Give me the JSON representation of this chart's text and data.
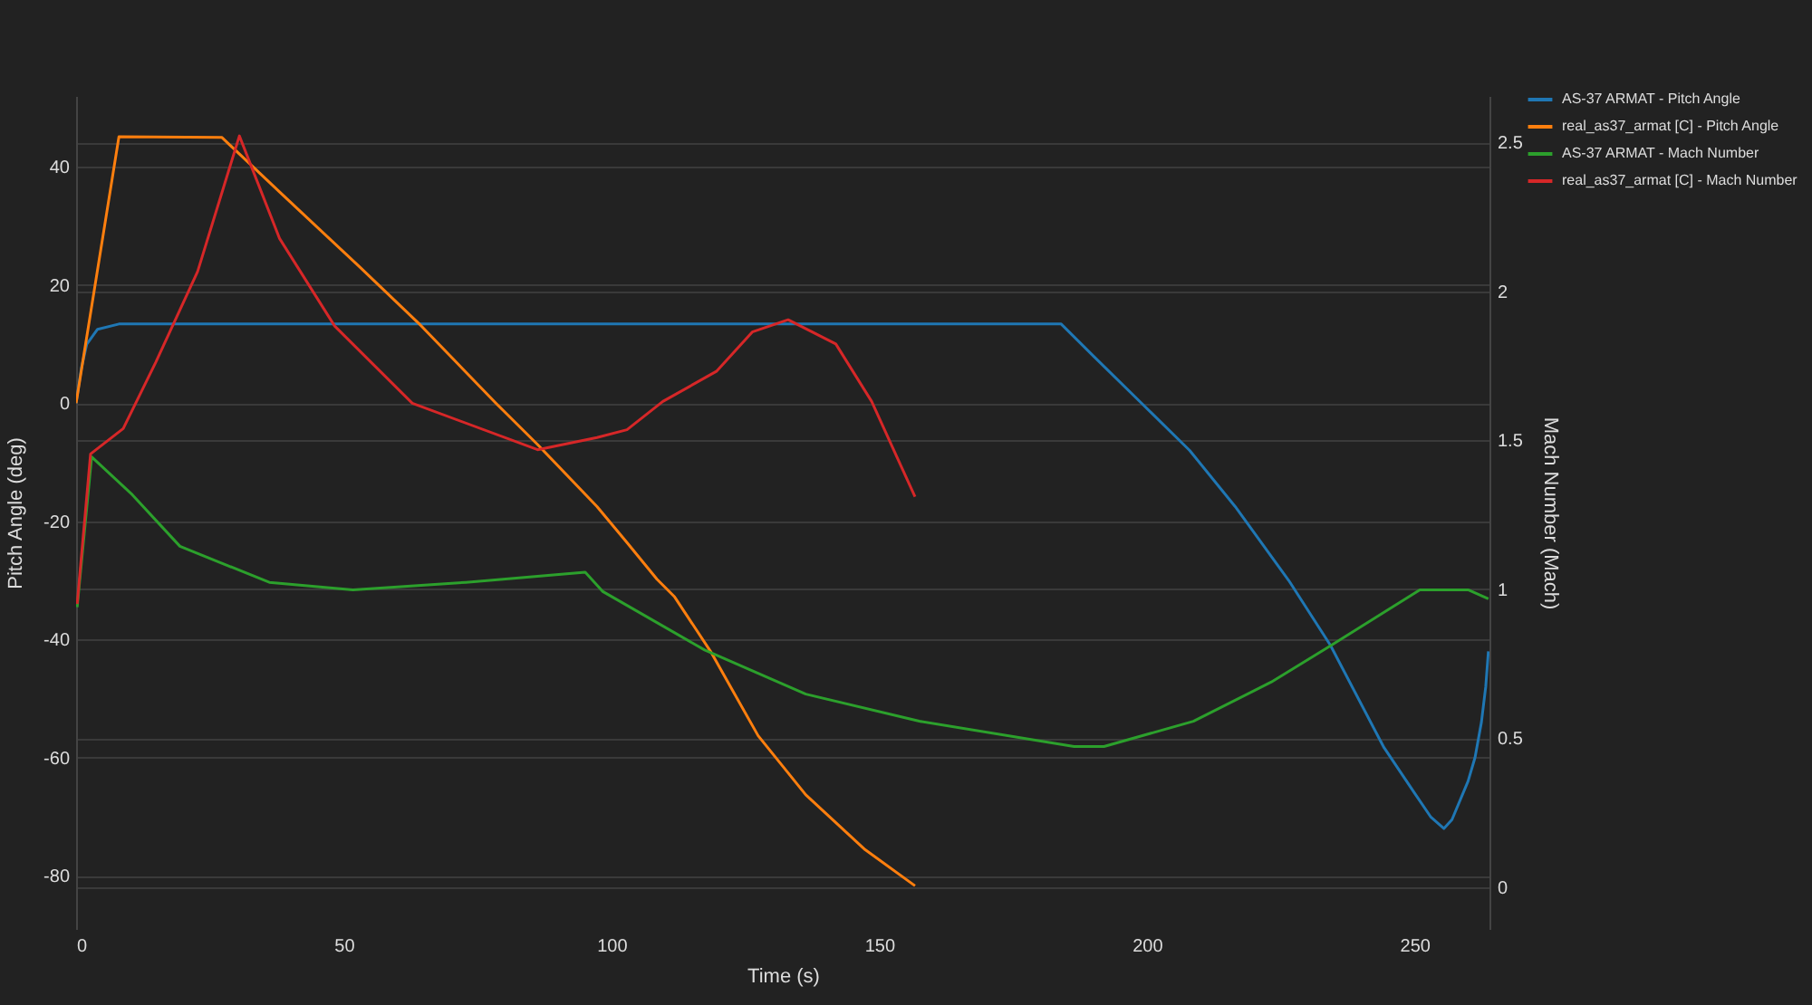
{
  "chart_data": {
    "type": "line",
    "xlabel": "Time (s)",
    "ylabel": "Pitch Angle (deg)",
    "y2label": "Mach Number (Mach)",
    "xlim": [
      0,
      264
    ],
    "xticks": [
      0,
      50,
      100,
      150,
      200,
      250
    ],
    "ylim": [
      -89,
      52
    ],
    "yticks": [
      -80,
      -60,
      -40,
      -20,
      0,
      20,
      40
    ],
    "y2lim": [
      -0.14,
      2.655
    ],
    "y2ticks": [
      0,
      0.5,
      1,
      1.5,
      2,
      2.5
    ],
    "grid": "y",
    "legend": "top right",
    "series": [
      {
        "name": "AS-37 ARMAT - Pitch Angle",
        "color": "#1f77b4",
        "x": [
          0,
          1,
          2,
          4,
          8,
          184,
          190,
          199,
          208,
          216.5,
          226.5,
          234.3,
          244.3,
          250,
          253,
          255.5,
          257,
          260,
          261.3,
          262.5,
          263.3,
          263.8
        ],
        "values": [
          0,
          6,
          10,
          12.5,
          13.4,
          13.4,
          8,
          0,
          -8,
          -17.5,
          -30,
          -41,
          -58.3,
          -66,
          -70,
          -72,
          -70.5,
          -64,
          -60,
          -54,
          -48,
          -42
        ]
      },
      {
        "name": "real_as37_armat [C] - Pitch Angle",
        "color": "#ff7f0e",
        "x": [
          0,
          8,
          27.2,
          38.3,
          52.8,
          63.9,
          78.4,
          86.2,
          97.3,
          102.9,
          108.5,
          111.8,
          118.5,
          127.4,
          136.3,
          147.4,
          156.7
        ],
        "values": [
          0,
          45.1,
          45,
          35.5,
          23.2,
          13.6,
          0,
          -7,
          -17.5,
          -23.6,
          -29.8,
          -32.8,
          -42,
          -56.3,
          -66.3,
          -75.6,
          -81.7
        ]
      },
      {
        "name": "AS-37 ARMAT - Mach Number",
        "color": "#2ca02c",
        "axis": "y2",
        "x": [
          0.2,
          2.9,
          10.5,
          19.4,
          36.1,
          51.7,
          72.8,
          95.1,
          98.4,
          117.4,
          136.3,
          157.5,
          186.4,
          192,
          208.7,
          223.2,
          234.3,
          251,
          260,
          263.8
        ],
        "values": [
          0.94,
          1.444,
          1.317,
          1.144,
          1.023,
          0.998,
          1.023,
          1.057,
          0.992,
          0.796,
          0.648,
          0.557,
          0.472,
          0.472,
          0.557,
          0.688,
          0.81,
          0.998,
          0.998,
          0.968
        ]
      },
      {
        "name": "real_as37_armat [C] - Mach Number",
        "color": "#d62728",
        "axis": "y2",
        "x": [
          0.2,
          2.7,
          8.8,
          14.9,
          22.7,
          30.5,
          38,
          48.3,
          62.8,
          86.2,
          97.3,
          102.9,
          109.6,
          119.6,
          126.3,
          133,
          141.9,
          148.6,
          156.7
        ],
        "values": [
          0.95,
          1.454,
          1.539,
          1.762,
          2.066,
          2.521,
          2.177,
          1.883,
          1.624,
          1.468,
          1.509,
          1.535,
          1.63,
          1.731,
          1.863,
          1.904,
          1.823,
          1.63,
          1.31
        ]
      }
    ]
  }
}
